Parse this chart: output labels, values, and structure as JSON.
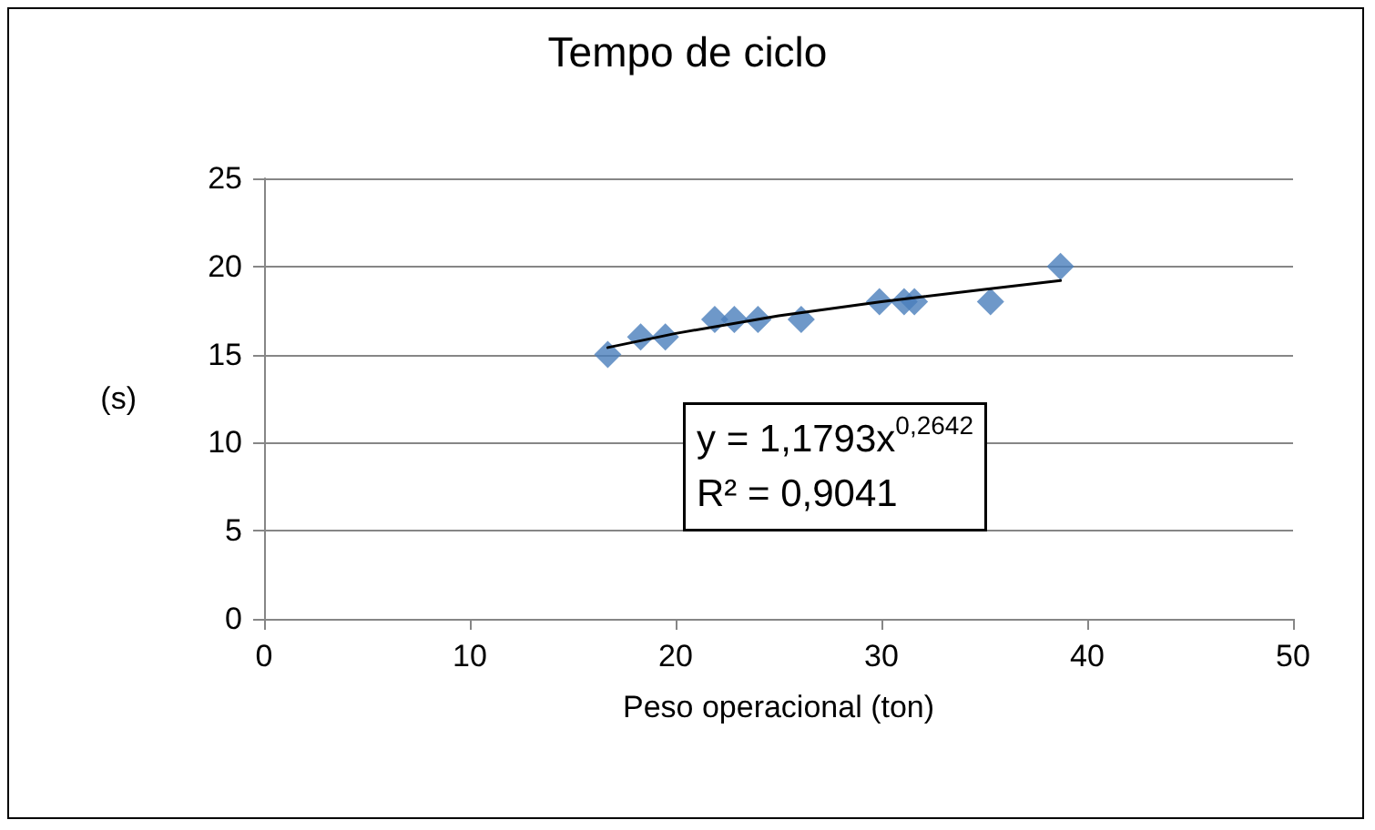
{
  "chart_data": {
    "type": "scatter",
    "title": "Tempo de ciclo",
    "xlabel": "Peso operacional (ton)",
    "ylabel": "(s)",
    "xlim": [
      0,
      50
    ],
    "xticks": [
      0,
      10,
      20,
      30,
      40,
      50
    ],
    "ylim": [
      0,
      25
    ],
    "yticks": [
      0,
      5,
      10,
      15,
      20,
      25
    ],
    "grid": "y",
    "marker": "diamond",
    "series": [
      {
        "color": "#4a7ebb",
        "x": [
          16.7,
          18.3,
          19.5,
          21.9,
          22.85,
          24.0,
          26.1,
          29.9,
          31.1,
          31.6,
          35.3,
          38.7
        ],
        "values": [
          15,
          16,
          16,
          17,
          17,
          17,
          17,
          18,
          18,
          18,
          18,
          20
        ]
      },
      {
        "type": "line",
        "color": "#000000",
        "marker": "none",
        "line_style": "solid",
        "x": [
          16.7,
          20,
          25,
          30,
          35,
          38.7
        ],
        "values": [
          15.4,
          16.2,
          17.2,
          18.0,
          18.7,
          19.2
        ]
      }
    ],
    "annotations": [
      "y = 1,1793x$^{0,2642}$",
      "R² = 0,9041"
    ]
  }
}
